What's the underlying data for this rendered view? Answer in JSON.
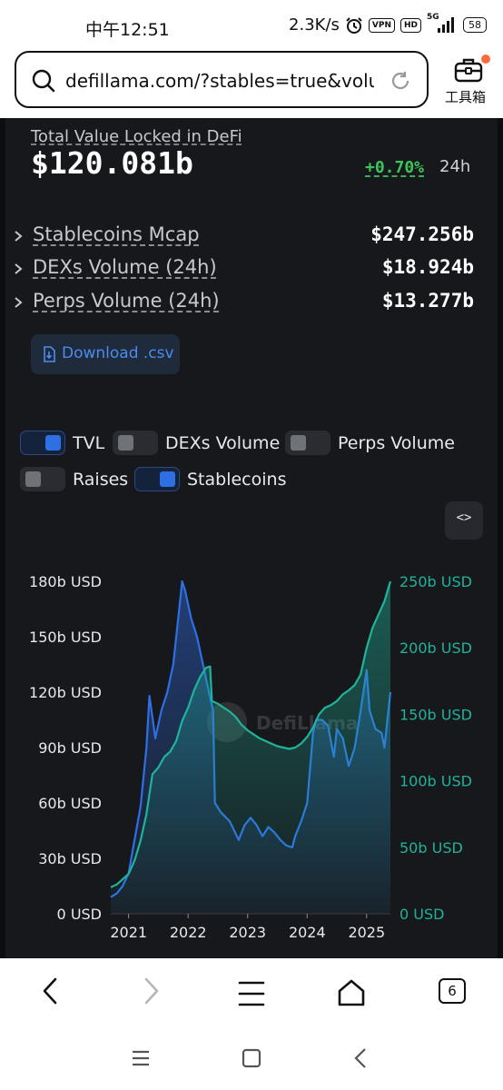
{
  "status_bar": {
    "time": "中午12:51",
    "net_speed": "2.3K/s",
    "vpn_badge": "VPN",
    "hd_badge": "HD",
    "network": "5G",
    "battery": "58"
  },
  "browser": {
    "url": "defillama.com/?stables=true&volu...",
    "toolbox_label": "工具箱",
    "tab_count": "6"
  },
  "summary": {
    "tvl_title": "Total Value Locked in DeFi",
    "tvl_value": "$120.081b",
    "tvl_change": "+0.70%",
    "tvl_period": "24h",
    "metrics": [
      {
        "label": "Stablecoins Mcap",
        "value": "$247.256b"
      },
      {
        "label": "DEXs Volume (24h)",
        "value": "$18.924b"
      },
      {
        "label": "Perps Volume (24h)",
        "value": "$13.277b"
      }
    ],
    "download_label": "Download .csv"
  },
  "toggles": [
    {
      "label": "TVL",
      "on": true
    },
    {
      "label": "DEXs Volume",
      "on": false
    },
    {
      "label": "Perps Volume",
      "on": false
    },
    {
      "label": "Raises",
      "on": false
    },
    {
      "label": "Stablecoins",
      "on": true
    }
  ],
  "embed_label": "<>",
  "watermark": "DefiLlama",
  "colors": {
    "tvl_line": "#2f6fe4",
    "stablecoins_line": "#1fb39a",
    "positive": "#3cc45a",
    "background": "#0b0d10",
    "card": "#17181c"
  },
  "chart_data": {
    "type": "line",
    "x_ticks": [
      "2021",
      "2022",
      "2023",
      "2024",
      "2025"
    ],
    "y_left_ticks": [
      "0 USD",
      "30b USD",
      "60b USD",
      "90b USD",
      "120b USD",
      "150b USD",
      "180b USD"
    ],
    "y_right_ticks": [
      "0 USD",
      "50b USD",
      "100b USD",
      "150b USD",
      "200b USD",
      "250b USD"
    ],
    "ylim_left": [
      0,
      180
    ],
    "ylim_right": [
      0,
      250
    ],
    "x_range": [
      2020.7,
      2025.4
    ],
    "grid": false,
    "series": [
      {
        "name": "TVL",
        "axis": "left",
        "color": "#2f6fe4",
        "x": [
          2020.7,
          2020.8,
          2020.9,
          2021.0,
          2021.1,
          2021.2,
          2021.3,
          2021.35,
          2021.45,
          2021.55,
          2021.65,
          2021.75,
          2021.85,
          2021.9,
          2021.95,
          2022.05,
          2022.15,
          2022.25,
          2022.35,
          2022.42,
          2022.45,
          2022.55,
          2022.7,
          2022.85,
          2022.95,
          2023.05,
          2023.15,
          2023.25,
          2023.35,
          2023.45,
          2023.55,
          2023.65,
          2023.75,
          2023.8,
          2023.9,
          2024.0,
          2024.1,
          2024.15,
          2024.25,
          2024.35,
          2024.45,
          2024.5,
          2024.6,
          2024.7,
          2024.8,
          2024.9,
          2025.0,
          2025.05,
          2025.15,
          2025.25,
          2025.3,
          2025.4
        ],
        "y": [
          9,
          11,
          15,
          22,
          40,
          58,
          90,
          118,
          95,
          110,
          120,
          135,
          165,
          180,
          175,
          160,
          150,
          135,
          120,
          110,
          60,
          55,
          50,
          40,
          48,
          52,
          48,
          42,
          47,
          44,
          40,
          37,
          36,
          42,
          50,
          60,
          98,
          105,
          105,
          102,
          85,
          100,
          95,
          80,
          90,
          110,
          132,
          110,
          100,
          98,
          90,
          120
        ]
      },
      {
        "name": "Stablecoins",
        "axis": "right",
        "color": "#1fb39a",
        "x": [
          2020.7,
          2020.8,
          2020.9,
          2021.0,
          2021.1,
          2021.2,
          2021.3,
          2021.4,
          2021.5,
          2021.6,
          2021.7,
          2021.8,
          2021.9,
          2022.0,
          2022.1,
          2022.2,
          2022.3,
          2022.37,
          2022.4,
          2022.5,
          2022.6,
          2022.7,
          2022.8,
          2022.9,
          2023.0,
          2023.1,
          2023.2,
          2023.3,
          2023.4,
          2023.5,
          2023.6,
          2023.7,
          2023.8,
          2023.9,
          2024.0,
          2024.1,
          2024.2,
          2024.3,
          2024.4,
          2024.5,
          2024.6,
          2024.7,
          2024.8,
          2024.9,
          2025.0,
          2025.1,
          2025.2,
          2025.3,
          2025.4
        ],
        "y": [
          20,
          22,
          26,
          30,
          40,
          55,
          75,
          105,
          110,
          118,
          122,
          130,
          145,
          155,
          168,
          178,
          185,
          186,
          160,
          158,
          155,
          152,
          148,
          142,
          138,
          135,
          132,
          130,
          128,
          126,
          125,
          124,
          125,
          128,
          133,
          140,
          150,
          155,
          157,
          160,
          165,
          168,
          172,
          180,
          200,
          215,
          225,
          235,
          250
        ]
      }
    ]
  }
}
